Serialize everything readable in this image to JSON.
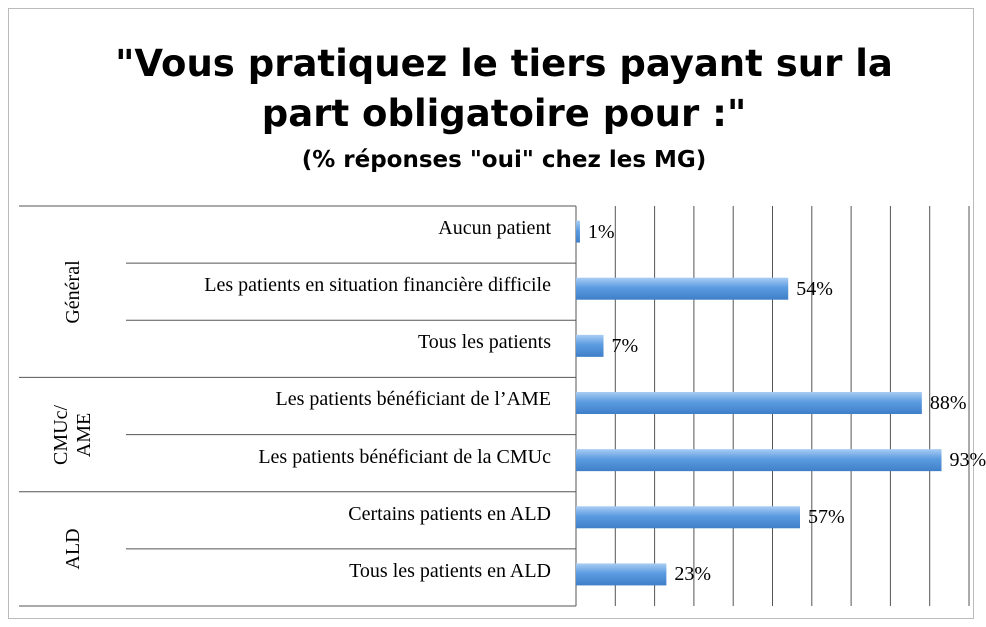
{
  "chart_data": {
    "type": "bar",
    "title": "\"Vous pratiquez le tiers payant sur la part obligatoire pour :\"",
    "subtitle": "(% réponses \"oui\" chez les MG)",
    "groups": [
      {
        "name": "Général",
        "categories": [
          "Aucun patient",
          "Les patients en situation financière difficile",
          "Tous les patients"
        ],
        "values": [
          1,
          54,
          7
        ],
        "value_labels": [
          "1%",
          "54%",
          "7%"
        ]
      },
      {
        "name": "CMUc/AME",
        "categories": [
          "Les patients bénéficiant de l’AME",
          "Les patients bénéficiant de la CMUc"
        ],
        "values": [
          88,
          93
        ],
        "value_labels": [
          "88%",
          "93%"
        ]
      },
      {
        "name": "ALD",
        "categories": [
          "Certains patients en ALD",
          "Tous les patients en ALD"
        ],
        "values": [
          57,
          23
        ],
        "value_labels": [
          "57%",
          "23%"
        ]
      }
    ],
    "color": "#5b9be0",
    "xlim": [
      0,
      100
    ],
    "xticks": [
      0,
      10,
      20,
      30,
      40,
      50,
      60,
      70,
      80,
      90,
      100
    ],
    "grid": true
  }
}
